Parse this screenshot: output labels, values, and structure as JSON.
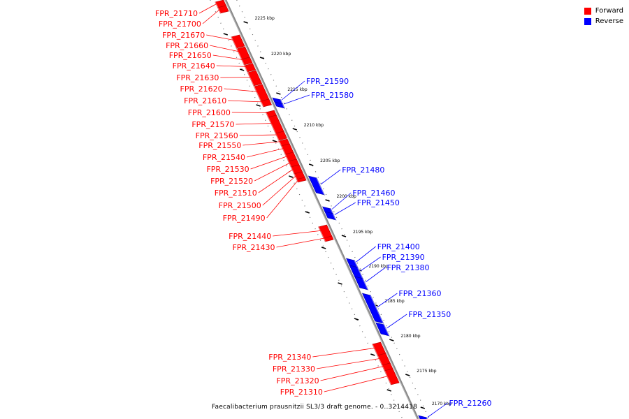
{
  "legend": {
    "forward_label": "Forward",
    "reverse_label": "Reverse",
    "forward_color": "#ff0000",
    "reverse_color": "#0000ff"
  },
  "caption": "Faecalibacterium prausnitzii SL3/3 draft genome. - 0..3214418",
  "scale": {
    "unit": "kbp",
    "ticks": [
      {
        "pos_kbp": 2225,
        "label": "2225 kbp"
      },
      {
        "pos_kbp": 2220,
        "label": "2220 kbp"
      },
      {
        "pos_kbp": 2215,
        "label": "2215 kbp"
      },
      {
        "pos_kbp": 2210,
        "label": "2210 kbp"
      },
      {
        "pos_kbp": 2205,
        "label": "2205 kbp"
      },
      {
        "pos_kbp": 2200,
        "label": "2200 kbp"
      },
      {
        "pos_kbp": 2195,
        "label": "2195 kbp"
      },
      {
        "pos_kbp": 2190,
        "label": "2190 kbp"
      },
      {
        "pos_kbp": 2185,
        "label": "2185 kbp"
      },
      {
        "pos_kbp": 2180,
        "label": "2180 kbp"
      },
      {
        "pos_kbp": 2175,
        "label": "2175 kbp"
      },
      {
        "pos_kbp": 2170,
        "label": "2170 kbp"
      }
    ]
  },
  "forward_genes": [
    "FPR_21710",
    "FPR_21700",
    "FPR_21670",
    "FPR_21660",
    "FPR_21650",
    "FPR_21640",
    "FPR_21630",
    "FPR_21620",
    "FPR_21610",
    "FPR_21600",
    "FPR_21570",
    "FPR_21560",
    "FPR_21550",
    "FPR_21540",
    "FPR_21530",
    "FPR_21520",
    "FPR_21510",
    "FPR_21500",
    "FPR_21490",
    "FPR_21440",
    "FPR_21430",
    "FPR_21340",
    "FPR_21330",
    "FPR_21320",
    "FPR_21310"
  ],
  "reverse_genes": [
    "FPR_21590",
    "FPR_21580",
    "FPR_21480",
    "FPR_21460",
    "FPR_21450",
    "FPR_21400",
    "FPR_21390",
    "FPR_21380",
    "FPR_21360",
    "FPR_21350",
    "FPR_21260"
  ]
}
